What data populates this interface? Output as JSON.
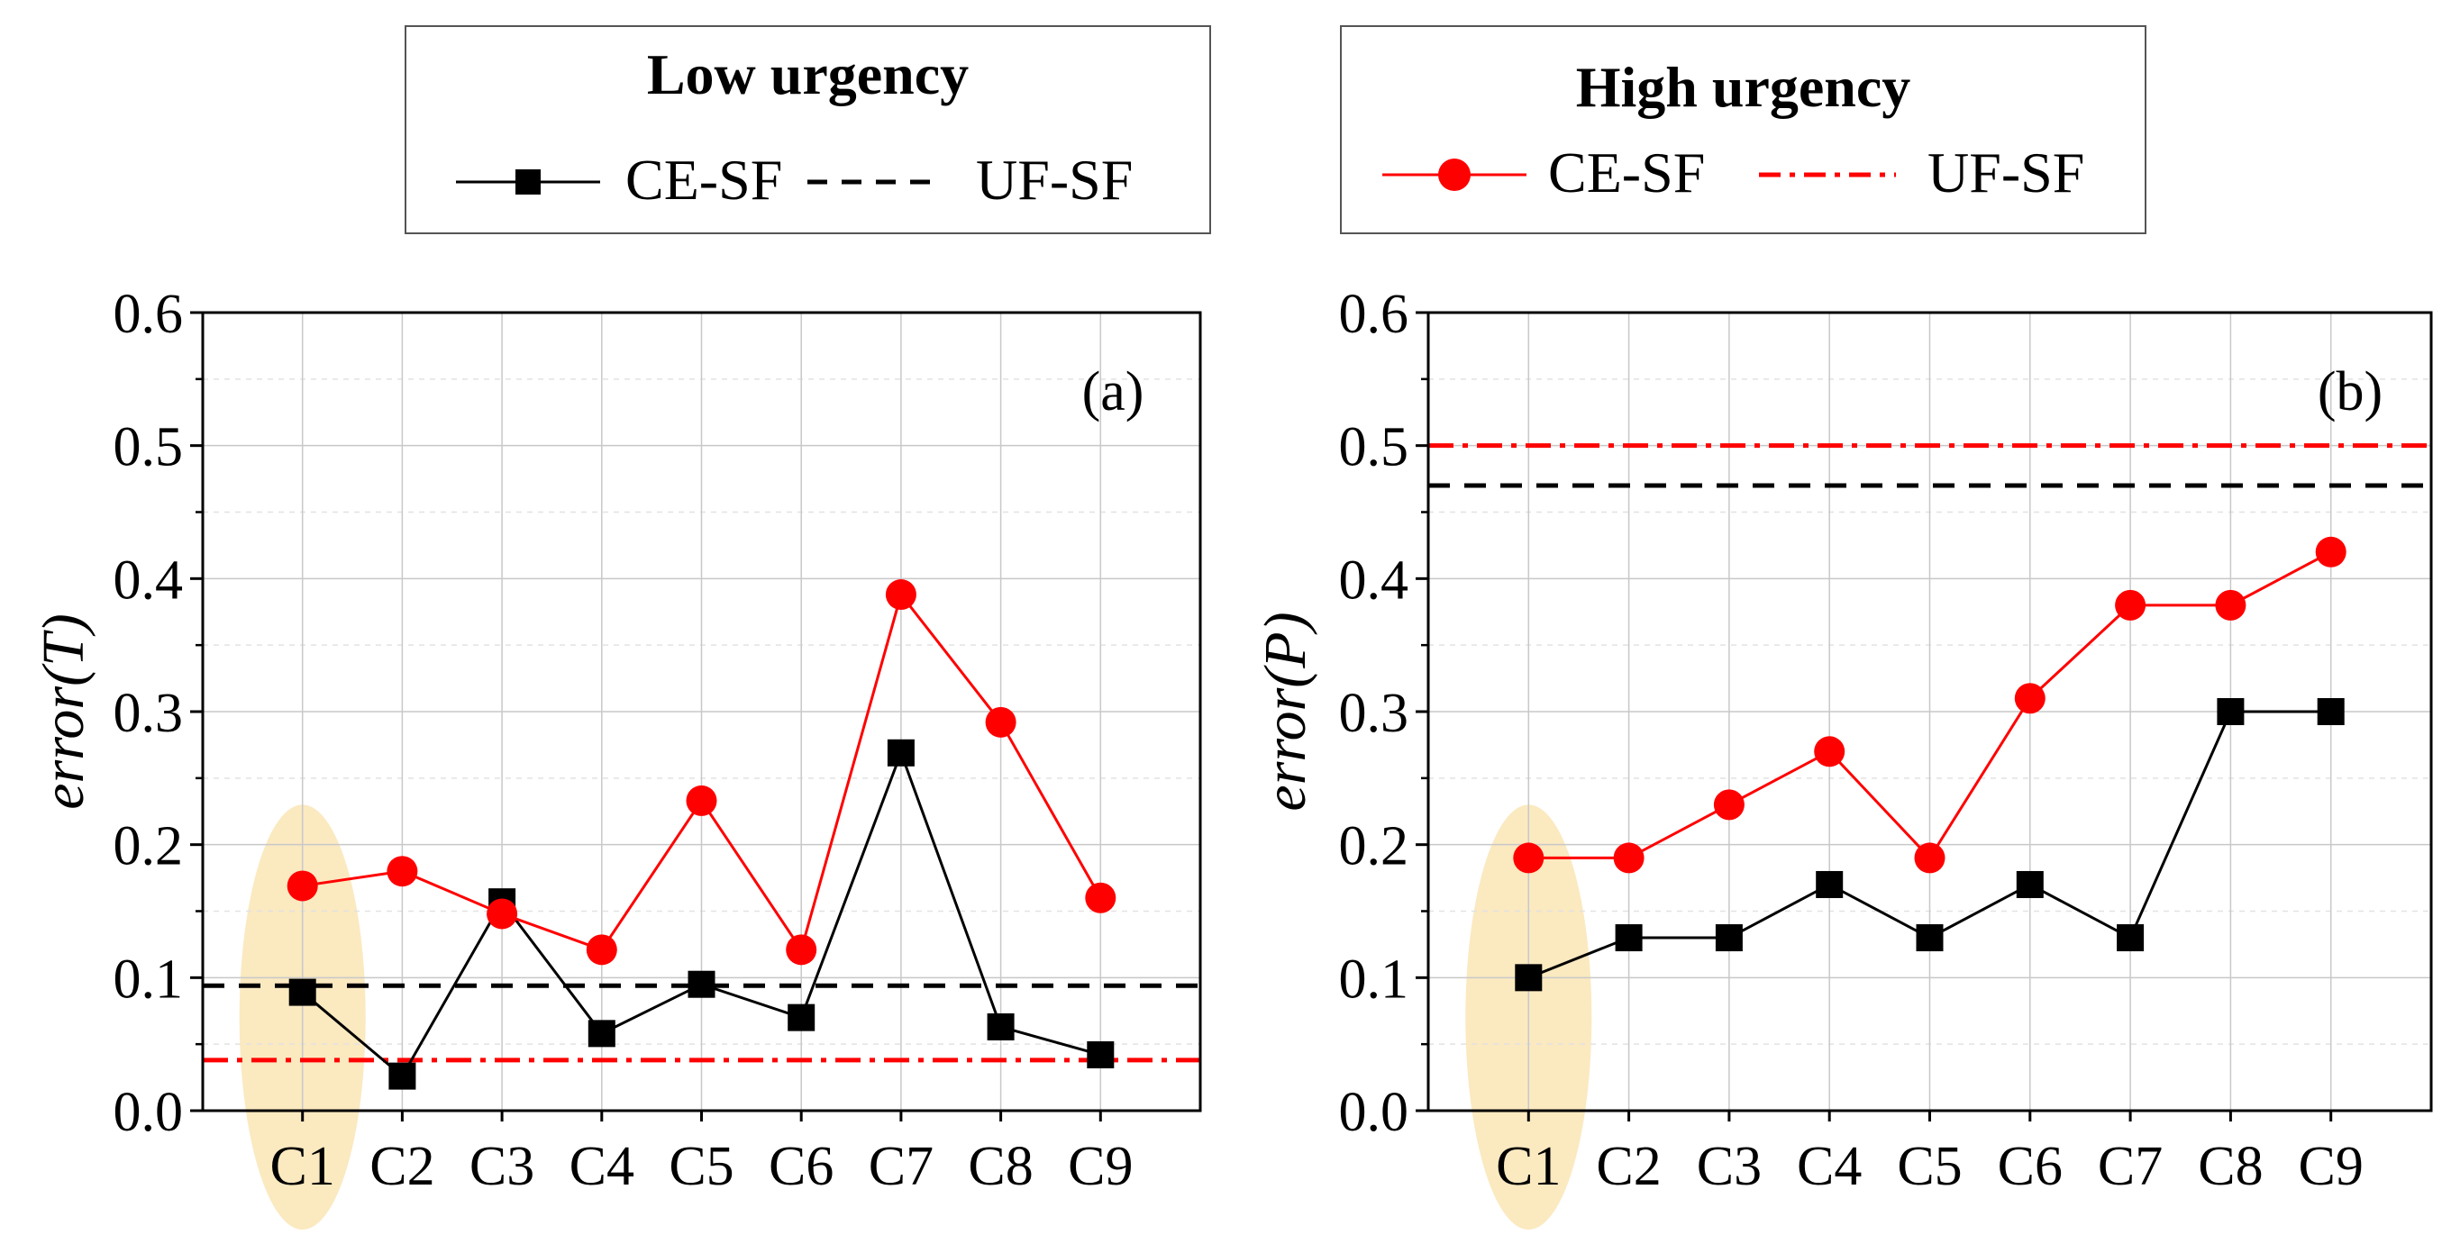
{
  "legends": [
    {
      "title": "Low urgency",
      "entries": [
        {
          "label": "CE-SF",
          "color": "#000000",
          "style": "solid",
          "marker": "square"
        },
        {
          "label": "UF-SF",
          "color": "#000000",
          "style": "dashed",
          "marker": "none"
        }
      ]
    },
    {
      "title": "High urgency",
      "entries": [
        {
          "label": "CE-SF",
          "color": "#ff0000",
          "style": "solid",
          "marker": "circle"
        },
        {
          "label": "UF-SF",
          "color": "#ff0000",
          "style": "dashdot",
          "marker": "none"
        }
      ]
    }
  ],
  "highlight": {
    "category": "C1",
    "color": "#fbe9c0"
  },
  "chart_data": [
    {
      "type": "line",
      "panel_label": "(a)",
      "ylabel_main": "error",
      "ylabel_var": "(T)",
      "categories": [
        "C1",
        "C2",
        "C3",
        "C4",
        "C5",
        "C6",
        "C7",
        "C8",
        "C9"
      ],
      "ylim": [
        0,
        0.6
      ],
      "yticks": [
        "0.0",
        "0.1",
        "0.2",
        "0.3",
        "0.4",
        "0.5",
        "0.6"
      ],
      "series": [
        {
          "name": "Low urgency CE-SF",
          "color": "#000000",
          "marker": "square",
          "values": [
            0.089,
            0.026,
            0.157,
            0.058,
            0.095,
            0.07,
            0.269,
            0.063,
            0.042
          ]
        },
        {
          "name": "High urgency CE-SF",
          "color": "#ff0000",
          "marker": "circle",
          "values": [
            0.169,
            0.18,
            0.148,
            0.121,
            0.233,
            0.121,
            0.388,
            0.292,
            0.16
          ]
        }
      ],
      "reference_lines": [
        {
          "name": "Low urgency UF-SF",
          "value": 0.094,
          "color": "#000000",
          "style": "dashed"
        },
        {
          "name": "High urgency UF-SF",
          "value": 0.038,
          "color": "#ff0000",
          "style": "dashdot"
        }
      ]
    },
    {
      "type": "line",
      "panel_label": "(b)",
      "ylabel_main": "error",
      "ylabel_var": "(P)",
      "categories": [
        "C1",
        "C2",
        "C3",
        "C4",
        "C5",
        "C6",
        "C7",
        "C8",
        "C9"
      ],
      "ylim": [
        0,
        0.6
      ],
      "yticks": [
        "0.0",
        "0.1",
        "0.2",
        "0.3",
        "0.4",
        "0.5",
        "0.6"
      ],
      "series": [
        {
          "name": "Low urgency CE-SF",
          "color": "#000000",
          "marker": "square",
          "values": [
            0.1,
            0.13,
            0.13,
            0.17,
            0.13,
            0.17,
            0.13,
            0.3,
            0.3
          ]
        },
        {
          "name": "High urgency CE-SF",
          "color": "#ff0000",
          "marker": "circle",
          "values": [
            0.19,
            0.19,
            0.23,
            0.27,
            0.19,
            0.31,
            0.38,
            0.38,
            0.42
          ]
        }
      ],
      "reference_lines": [
        {
          "name": "Low urgency UF-SF",
          "value": 0.47,
          "color": "#000000",
          "style": "dashed"
        },
        {
          "name": "High urgency UF-SF",
          "value": 0.5,
          "color": "#ff0000",
          "style": "dashdot"
        }
      ]
    }
  ]
}
